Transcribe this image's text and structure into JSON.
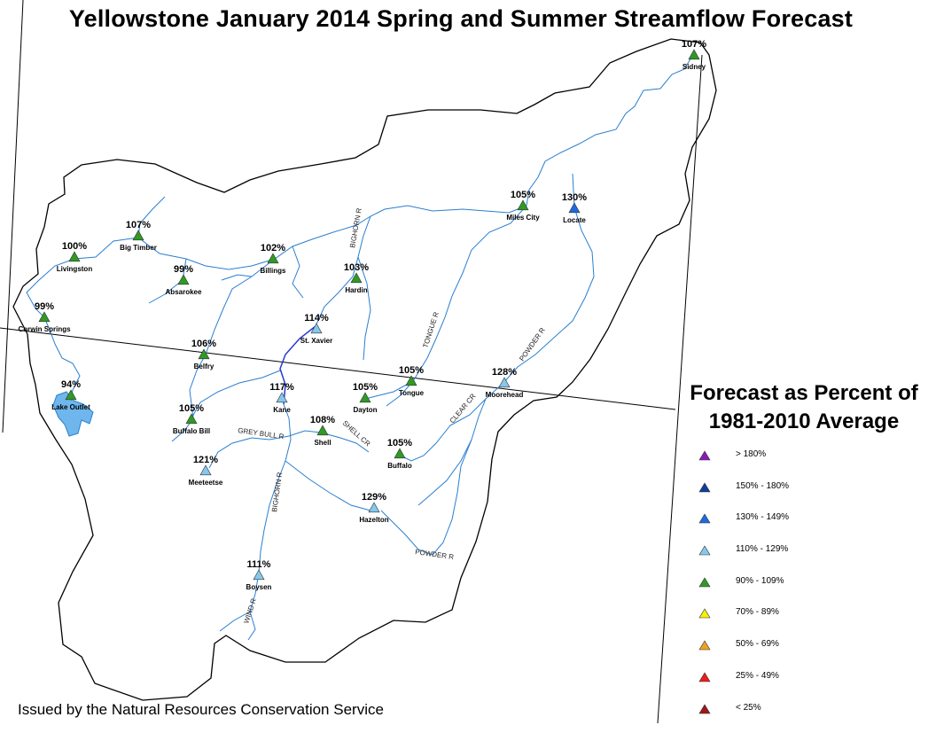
{
  "title": "Yellowstone January 2014 Spring and Summer Streamflow Forecast",
  "footer": "Issued by the Natural Resources Conservation Service",
  "legend": {
    "title_line1": "Forecast as Percent of",
    "title_line2": "1981-2010 Average",
    "classes": [
      {
        "label": "> 180%",
        "color": "#8a1ab8"
      },
      {
        "label": "150% - 180%",
        "color": "#0f3f9a"
      },
      {
        "label": "130% - 149%",
        "color": "#1e6be0"
      },
      {
        "label": "110% - 129%",
        "color": "#85c8ee"
      },
      {
        "label": "90% - 109%",
        "color": "#2f9a24"
      },
      {
        "label": "70% - 89%",
        "color": "#f4f00a"
      },
      {
        "label": "50% - 69%",
        "color": "#f0a21e"
      },
      {
        "label": "25% - 49%",
        "color": "#ef1c1c"
      },
      {
        "label": "< 25%",
        "color": "#a01818"
      }
    ]
  },
  "sites": [
    {
      "name": "Sidney",
      "percent": "107%",
      "color": "#2f9a24"
    },
    {
      "name": "Miles City",
      "percent": "105%",
      "color": "#2f9a24"
    },
    {
      "name": "Locate",
      "percent": "130%",
      "color": "#1e6be0"
    },
    {
      "name": "Big Timber",
      "percent": "107%",
      "color": "#2f9a24"
    },
    {
      "name": "Livingston",
      "percent": "100%",
      "color": "#2f9a24"
    },
    {
      "name": "Billings",
      "percent": "102%",
      "color": "#2f9a24"
    },
    {
      "name": "Absarokee",
      "percent": "99%",
      "color": "#2f9a24"
    },
    {
      "name": "Hardin",
      "percent": "103%",
      "color": "#2f9a24"
    },
    {
      "name": "Corwin Springs",
      "percent": "99%",
      "color": "#2f9a24"
    },
    {
      "name": "St. Xavier",
      "percent": "114%",
      "color": "#85c8ee"
    },
    {
      "name": "Belfry",
      "percent": "106%",
      "color": "#2f9a24"
    },
    {
      "name": "Tongue",
      "percent": "105%",
      "color": "#2f9a24"
    },
    {
      "name": "Moorehead",
      "percent": "128%",
      "color": "#85c8ee"
    },
    {
      "name": "Lake Outlet",
      "percent": "94%",
      "color": "#2f9a24"
    },
    {
      "name": "Kane",
      "percent": "117%",
      "color": "#85c8ee"
    },
    {
      "name": "Dayton",
      "percent": "105%",
      "color": "#2f9a24"
    },
    {
      "name": "Buffalo Bill",
      "percent": "105%",
      "color": "#2f9a24"
    },
    {
      "name": "Shell",
      "percent": "108%",
      "color": "#2f9a24"
    },
    {
      "name": "Buffalo",
      "percent": "105%",
      "color": "#2f9a24"
    },
    {
      "name": "Meeteetse",
      "percent": "121%",
      "color": "#85c8ee"
    },
    {
      "name": "Hazelton",
      "percent": "129%",
      "color": "#85c8ee"
    },
    {
      "name": "Boysen",
      "percent": "111%",
      "color": "#85c8ee"
    }
  ],
  "rivers": [
    {
      "name": "BIGHORN R"
    },
    {
      "name": "TONGUE R"
    },
    {
      "name": "POWDER R"
    },
    {
      "name": "CLEAR CR"
    },
    {
      "name": "SHELL CR"
    },
    {
      "name": "GREY BULL R"
    },
    {
      "name": "BIGHORN R"
    },
    {
      "name": "POWDER R"
    },
    {
      "name": "WIND R"
    }
  ],
  "colors": {
    "river": "#2a7fd0",
    "boundary": "#000000",
    "lake": "#6fb6ec",
    "mainstem": "#2a3ad0"
  }
}
